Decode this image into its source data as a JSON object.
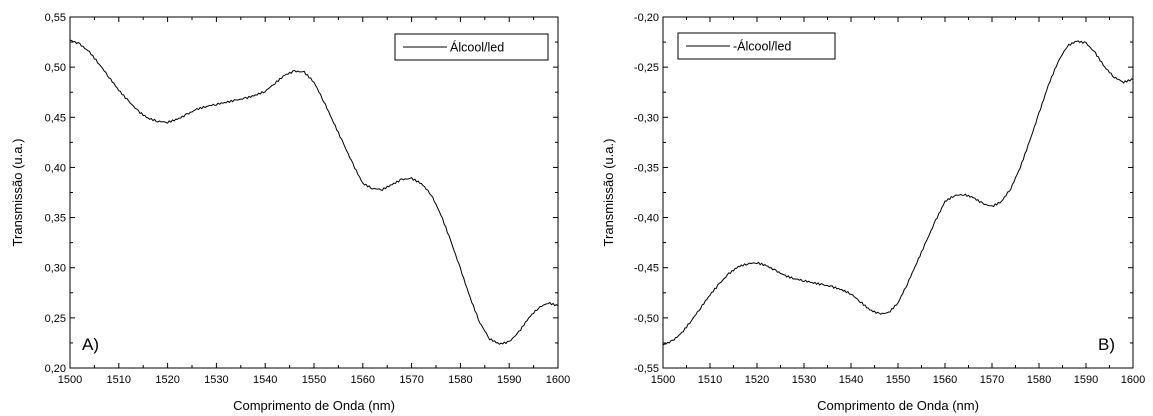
{
  "chart_data": [
    {
      "type": "line",
      "panel_label": "A)",
      "xlabel": "Comprimento de Onda (nm)",
      "ylabel": "Transmissão (u.a.)",
      "xlim": [
        1500,
        1600
      ],
      "ylim": [
        0.2,
        0.55
      ],
      "xticks": [
        "1500",
        "1510",
        "1520",
        "1530",
        "1540",
        "1550",
        "1560",
        "1570",
        "1580",
        "1590",
        "1600"
      ],
      "yticks": [
        "0,20",
        "0,25",
        "0,30",
        "0,35",
        "0,40",
        "0,45",
        "0,50",
        "0,55"
      ],
      "legend_position": "top-right",
      "grid": false,
      "series": [
        {
          "name": "Álcool/led",
          "color": "#000000",
          "x": [
            1500,
            1502,
            1504,
            1506,
            1508,
            1510,
            1512,
            1514,
            1516,
            1518,
            1520,
            1522,
            1524,
            1526,
            1528,
            1530,
            1532,
            1534,
            1536,
            1538,
            1540,
            1542,
            1544,
            1546,
            1548,
            1550,
            1552,
            1554,
            1556,
            1558,
            1560,
            1562,
            1564,
            1566,
            1568,
            1570,
            1572,
            1574,
            1576,
            1578,
            1580,
            1582,
            1584,
            1586,
            1588,
            1590,
            1592,
            1594,
            1596,
            1598,
            1600
          ],
          "y": [
            0.527,
            0.523,
            0.515,
            0.503,
            0.49,
            0.477,
            0.466,
            0.456,
            0.449,
            0.446,
            0.445,
            0.448,
            0.453,
            0.458,
            0.461,
            0.463,
            0.465,
            0.467,
            0.469,
            0.472,
            0.476,
            0.484,
            0.492,
            0.496,
            0.495,
            0.485,
            0.466,
            0.445,
            0.424,
            0.403,
            0.384,
            0.379,
            0.378,
            0.383,
            0.388,
            0.389,
            0.384,
            0.373,
            0.353,
            0.327,
            0.299,
            0.27,
            0.245,
            0.229,
            0.224,
            0.226,
            0.236,
            0.25,
            0.26,
            0.265,
            0.262
          ]
        }
      ]
    },
    {
      "type": "line",
      "panel_label": "B)",
      "xlabel": "Comprimento de Onda (nm)",
      "ylabel": "Transmissão (u.a.)",
      "xlim": [
        1500,
        1600
      ],
      "ylim": [
        -0.55,
        -0.2
      ],
      "xticks": [
        "1500",
        "1510",
        "1520",
        "1530",
        "1540",
        "1550",
        "1560",
        "1570",
        "1580",
        "1590",
        "1600"
      ],
      "yticks": [
        "-0,55",
        "-0,50",
        "-0,45",
        "-0,40",
        "-0,35",
        "-0,30",
        "-0,25",
        "-0,20"
      ],
      "legend_position": "top-left",
      "grid": false,
      "series": [
        {
          "name": "-Álcool/led",
          "color": "#000000",
          "x": [
            1500,
            1502,
            1504,
            1506,
            1508,
            1510,
            1512,
            1514,
            1516,
            1518,
            1520,
            1522,
            1524,
            1526,
            1528,
            1530,
            1532,
            1534,
            1536,
            1538,
            1540,
            1542,
            1544,
            1546,
            1548,
            1550,
            1552,
            1554,
            1556,
            1558,
            1560,
            1562,
            1564,
            1566,
            1568,
            1570,
            1572,
            1574,
            1576,
            1578,
            1580,
            1582,
            1584,
            1586,
            1588,
            1590,
            1592,
            1594,
            1596,
            1598,
            1600
          ],
          "y": [
            -0.527,
            -0.523,
            -0.515,
            -0.503,
            -0.49,
            -0.477,
            -0.466,
            -0.456,
            -0.449,
            -0.446,
            -0.445,
            -0.448,
            -0.453,
            -0.458,
            -0.461,
            -0.463,
            -0.465,
            -0.467,
            -0.469,
            -0.472,
            -0.476,
            -0.484,
            -0.492,
            -0.496,
            -0.495,
            -0.485,
            -0.466,
            -0.445,
            -0.424,
            -0.403,
            -0.384,
            -0.378,
            -0.377,
            -0.38,
            -0.386,
            -0.389,
            -0.384,
            -0.371,
            -0.35,
            -0.324,
            -0.296,
            -0.268,
            -0.245,
            -0.229,
            -0.224,
            -0.226,
            -0.236,
            -0.25,
            -0.26,
            -0.265,
            -0.262
          ]
        }
      ]
    }
  ]
}
